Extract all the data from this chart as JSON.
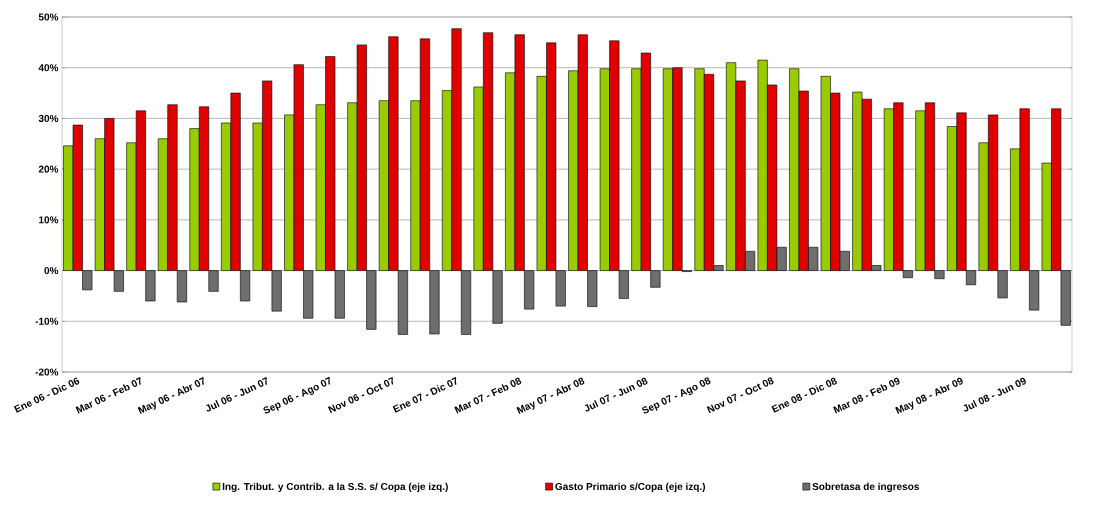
{
  "chart_data": {
    "type": "bar",
    "categories": [
      "Ene 06 - Dic 06",
      null,
      "Mar 06 - Feb 07",
      null,
      "May 06 - Abr 07",
      null,
      "Jul 06 - Jun 07",
      null,
      "Sep 06 - Ago 07",
      null,
      "Nov 06 - Oct 07",
      null,
      "Ene 07 - Dic 07",
      null,
      "Mar 07 - Feb 08",
      null,
      "May 07 - Abr 08",
      null,
      "Jul 07 - Jun 08",
      null,
      "Sep 07 - Ago 08",
      null,
      "Nov 07 - Oct 08",
      null,
      "Ene 08 - Dic 08",
      null,
      "Mar 08 - Feb 09",
      null,
      "May 08 - Abr 09",
      null,
      "Jul 08 - Jun 09",
      null
    ],
    "series": [
      {
        "name": "Ing. Tribut. y Contrib. a la S.S. s/ Copa (eje izq.)",
        "color": "#99cc00",
        "values": [
          24.6,
          26,
          25.2,
          26,
          28,
          29.1,
          29.1,
          30.7,
          32.7,
          33.1,
          33.5,
          33.5,
          35.5,
          36.2,
          39,
          38.3,
          39.4,
          39.8,
          39.8,
          39.8,
          39.8,
          41,
          41.5,
          39.8,
          38.3,
          35.2,
          31.9,
          31.5,
          28.4,
          25.2,
          24,
          21.2
        ]
      },
      {
        "name": "Gasto Primario s/Copa (eje izq.)",
        "color": "#e00000",
        "values": [
          28.7,
          30,
          31.5,
          32.7,
          32.3,
          35,
          37.4,
          40.6,
          42.2,
          44.5,
          46.1,
          45.7,
          47.7,
          46.9,
          46.5,
          44.9,
          46.5,
          45.3,
          42.9,
          40,
          38.7,
          37.4,
          36.6,
          35.4,
          35,
          33.8,
          33.1,
          33.1,
          31.1,
          30.7,
          31.9,
          31.9
        ]
      },
      {
        "name": "Sobretasa de ingresos",
        "color": "#6e6e6e",
        "values": [
          -3.8,
          -4.1,
          -6,
          -6.2,
          -4.1,
          -6,
          -8,
          -9.4,
          -9.4,
          -11.6,
          -12.6,
          -12.5,
          -12.6,
          -10.4,
          -7.6,
          -7,
          -7.1,
          -5.5,
          -3.3,
          -0.2,
          1,
          3.8,
          4.6,
          4.6,
          3.8,
          1,
          -1.4,
          -1.6,
          -2.8,
          -5.4,
          -7.8,
          -10.8
        ]
      }
    ],
    "ylim": [
      -20,
      50
    ],
    "yticks": [
      {
        "value": -20,
        "label": "-20%"
      },
      {
        "value": -10,
        "label": "-10%"
      },
      {
        "value": 0,
        "label": "0%"
      },
      {
        "value": 10,
        "label": "10%"
      },
      {
        "value": 20,
        "label": "20%"
      },
      {
        "value": 30,
        "label": "30%"
      },
      {
        "value": 40,
        "label": "40%"
      },
      {
        "value": 50,
        "label": "50%"
      }
    ],
    "grid": "y",
    "legend": "bottom"
  }
}
